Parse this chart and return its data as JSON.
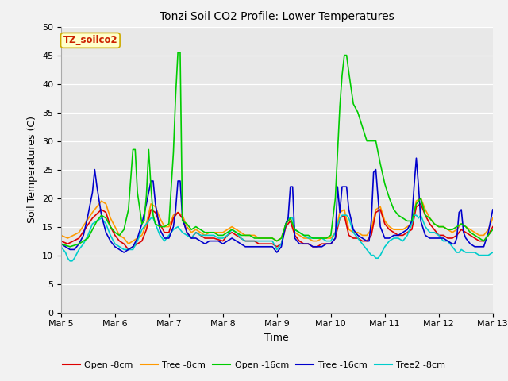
{
  "title": "Tonzi Soil CO2 Profile: Lower Temperatures",
  "xlabel": "Time",
  "ylabel": "Soil Temperatures (C)",
  "ylim": [
    0,
    50
  ],
  "yticks": [
    0,
    5,
    10,
    15,
    20,
    25,
    30,
    35,
    40,
    45,
    50
  ],
  "fig_bg": "#f2f2f2",
  "plot_bg": "#e8e8e8",
  "watermark_text": "TZ_soilco2",
  "watermark_color": "#cc2200",
  "watermark_bg": "#ffffcc",
  "watermark_border": "#ccaa00",
  "series": {
    "open_8cm": {
      "label": "Open -8cm",
      "color": "#dd0000",
      "lw": 1.2
    },
    "tree_8cm": {
      "label": "Tree -8cm",
      "color": "#ff9900",
      "lw": 1.2
    },
    "open_16cm": {
      "label": "Open -16cm",
      "color": "#00cc00",
      "lw": 1.2
    },
    "tree_16cm": {
      "label": "Tree -16cm",
      "color": "#0000cc",
      "lw": 1.2
    },
    "tree2_8cm": {
      "label": "Tree2 -8cm",
      "color": "#00cccc",
      "lw": 1.2
    }
  },
  "xtick_labels": [
    "Mar 5",
    "Mar 6",
    "Mar 7",
    "Mar 8",
    "Mar 9",
    "Mar 10",
    "Mar 11",
    "Mar 12",
    "Mar 13"
  ],
  "xtick_positions": [
    0,
    24,
    48,
    72,
    96,
    120,
    144,
    168,
    192
  ]
}
